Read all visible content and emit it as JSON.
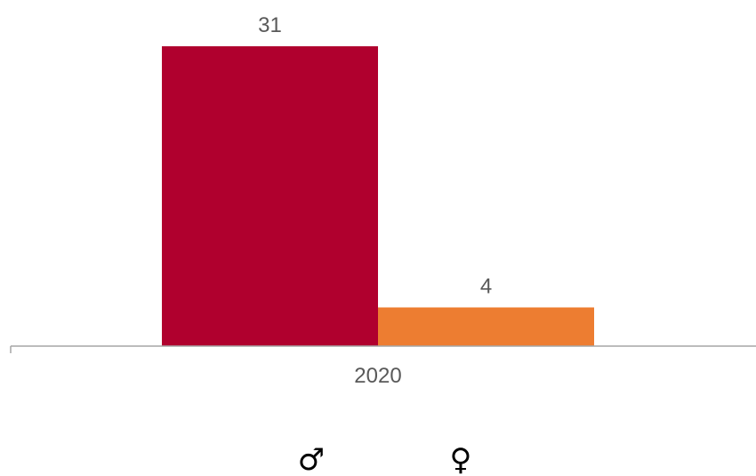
{
  "chart_data": {
    "type": "bar",
    "categories": [
      "2020"
    ],
    "series": [
      {
        "name": "♂",
        "values": [
          31
        ],
        "color": "#b0002e"
      },
      {
        "name": "♀",
        "values": [
          4
        ],
        "color": "#ed7d31"
      }
    ],
    "title": "",
    "xlabel": "",
    "ylabel": "",
    "ylim": [
      0,
      31
    ],
    "grid": false,
    "legend_position": "bottom"
  },
  "colors": {
    "axis": "#a6a6a6",
    "label_text": "#595959"
  }
}
